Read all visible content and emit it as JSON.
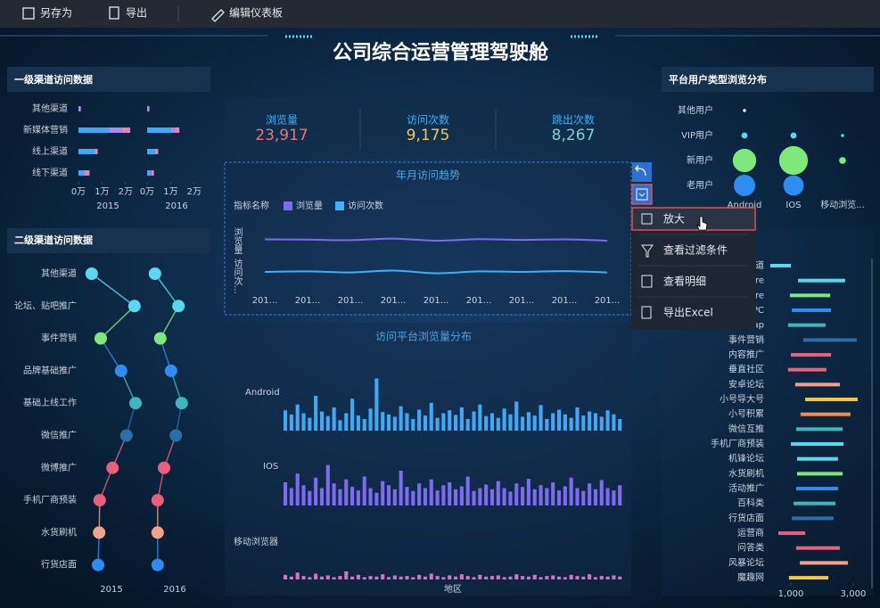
{
  "toolbar": {
    "items": [
      "另存为",
      "导出",
      "编辑仪表板"
    ]
  },
  "dashboard": {
    "title": "公司综合运营管理驾驶舱"
  },
  "kpis": [
    {
      "label": "浏览量",
      "value": "23,917"
    },
    {
      "label": "访问次数",
      "value": "9,175"
    },
    {
      "label": "跳出次数",
      "value": "8,267"
    }
  ],
  "context_menu": {
    "items": [
      "放大",
      "查看过滤条件",
      "查看明细",
      "导出Excel"
    ]
  },
  "chart_data": [
    {
      "type": "stacked-bar",
      "title": "一级渠道访问数据",
      "categories": [
        "其他渠道",
        "新媒体营销",
        "线上渠道",
        "线下渠道"
      ],
      "facets": [
        {
          "label": "2015",
          "series": [
            {
              "color": "#3fa9f5",
              "values": [
                0,
                13000,
                7000,
                2500
              ]
            },
            {
              "color": "#a98cf0",
              "values": [
                1000,
                5500,
                0,
                0
              ]
            },
            {
              "color": "#e77fc6",
              "values": [
                0,
                3500,
                1200,
                2200
              ]
            }
          ]
        },
        {
          "label": "2016",
          "series": [
            {
              "color": "#3fa9f5",
              "values": [
                0,
                10000,
                3600,
                1800
              ]
            },
            {
              "color": "#a98cf0",
              "values": [
                1000,
                1500,
                0,
                0
              ]
            },
            {
              "color": "#e77fc6",
              "values": [
                0,
                2200,
                1100,
                1100
              ]
            }
          ]
        }
      ],
      "xlim": [
        0,
        25000
      ],
      "xticks": [
        {
          "value": 0,
          "label": "0万"
        },
        {
          "value": 10000,
          "label": "1万"
        },
        {
          "value": 20000,
          "label": "2万"
        }
      ]
    },
    {
      "type": "dot-line",
      "title": "二级渠道访问数据",
      "categories": [
        "其他渠道",
        "论坛、贴吧推广",
        "事件营销",
        "品牌基础推广",
        "基础上线工作",
        "微信推广",
        "微博推广",
        "手机厂商预装",
        "水货刷机",
        "行货店面"
      ],
      "colors": [
        "#5ad8f0",
        "#5ad8f0",
        "#7ee87a",
        "#2e8df0",
        "#3fb7c0",
        "#2b6ea8",
        "#e8607a",
        "#e8607a",
        "#f2a28a",
        "#2e8df0"
      ],
      "facets": [
        {
          "label": "2015",
          "values": [
            13,
            93,
            30,
            68,
            95,
            78,
            52,
            28,
            27,
            25
          ]
        },
        {
          "label": "2016",
          "values": [
            13,
            57,
            23,
            43,
            63,
            52,
            30,
            18,
            18,
            18
          ]
        }
      ],
      "xlim": [
        0,
        100
      ]
    },
    {
      "type": "bubble",
      "title": "平台用户类型浏览分布",
      "rows": [
        "其他用户",
        "VIP用户",
        "新用户",
        "老用户"
      ],
      "columns": [
        "Android",
        "IOS",
        "移动浏览..."
      ],
      "colors": [
        "#ffffff",
        "#5ad8f0",
        "#7ee87a",
        "#2e8df0"
      ],
      "values": [
        [
          1,
          0,
          0
        ],
        [
          4,
          4,
          1
        ],
        [
          60,
          90,
          5
        ],
        [
          50,
          45,
          0
        ]
      ]
    },
    {
      "type": "line",
      "title": "年月访问趋势",
      "legend_title": "指标名称",
      "categories": [
        "201...",
        "201...",
        "201...",
        "201...",
        "201...",
        "201...",
        "201...",
        "201...",
        "201..."
      ],
      "series": [
        {
          "name": "浏览量",
          "row_label": "浏览量",
          "color": "#7b6cf0",
          "values": [
            55,
            54,
            52,
            58,
            50,
            56,
            53,
            55,
            50
          ]
        },
        {
          "name": "访问次数",
          "row_label": "访问次...",
          "color": "#3fb0f5",
          "values": [
            50,
            52,
            48,
            55,
            45,
            52,
            50,
            53,
            48
          ]
        }
      ],
      "ylim": [
        0,
        100
      ]
    },
    {
      "type": "bar",
      "title": "访问平台浏览量分布",
      "x_label": "地区",
      "series": [
        {
          "name": "Android",
          "color": "#3fa9f5",
          "values": [
            35,
            28,
            45,
            30,
            22,
            60,
            33,
            25,
            40,
            18,
            30,
            55,
            26,
            20,
            38,
            90,
            32,
            28,
            24,
            42,
            30,
            20,
            36,
            26,
            48,
            22,
            30,
            35,
            27,
            40,
            20,
            33,
            45,
            25,
            30,
            22,
            38,
            28,
            50,
            24,
            32,
            26,
            44,
            20,
            30,
            36,
            28,
            22,
            40,
            26,
            33,
            30,
            24,
            35,
            28,
            20
          ]
        },
        {
          "name": "IOS",
          "color": "#7b6cf0",
          "values": [
            40,
            30,
            55,
            35,
            25,
            48,
            30,
            70,
            38,
            28,
            45,
            32,
            26,
            50,
            30,
            22,
            42,
            35,
            28,
            60,
            32,
            25,
            38,
            30,
            45,
            26,
            35,
            40,
            28,
            33,
            50,
            25,
            30,
            36,
            28,
            42,
            30,
            24,
            38,
            32,
            46,
            28,
            35,
            30,
            40,
            26,
            33,
            48,
            30,
            25,
            38,
            28,
            44,
            30,
            26,
            35
          ]
        },
        {
          "name": "移动浏览器",
          "color": "#d86fc8",
          "values": [
            8,
            5,
            12,
            6,
            4,
            10,
            5,
            7,
            4,
            6,
            14,
            5,
            8,
            4,
            6,
            5,
            9,
            4,
            7,
            5,
            6,
            4,
            8,
            5,
            10,
            6,
            4,
            7,
            5,
            9,
            6,
            4,
            8,
            5,
            6,
            7,
            4,
            5,
            9,
            6,
            5,
            8,
            4,
            6,
            7,
            5,
            4,
            8,
            6,
            5,
            9,
            4,
            6,
            5,
            7,
            5
          ]
        }
      ],
      "ylim": [
        0,
        100
      ]
    },
    {
      "type": "range-bar",
      "categories": [
        "道",
        "re",
        "re",
        "PC",
        "ap",
        "事件营销",
        "内容推广",
        "垂直社区",
        "安卓论坛",
        "小号导大号",
        "小号积累",
        "微信互推",
        "手机厂商预装",
        "机锋论坛",
        "水货刷机",
        "活动推广",
        "百科类",
        "行货店面",
        "运营商",
        "问答类",
        "风暴论坛",
        "魔趣网"
      ],
      "colors": [
        "#5ad8f0",
        "#5ad8f0",
        "#7ee87a",
        "#2e8df0",
        "#3fb7c0",
        "#2b6ea8",
        "#e8607a",
        "#e8607a",
        "#f2a28a",
        "#f5c842",
        "#f2904a",
        "#3fb7c0",
        "#5ad8f0",
        "#5ad8f0",
        "#7ee87a",
        "#2e8df0",
        "#3fb7c0",
        "#2b6ea8",
        "#e8607a",
        "#e8607a",
        "#f2a28a",
        "#f5c842"
      ],
      "starts": [
        340,
        1230,
        970,
        1030,
        910,
        1400,
        1000,
        910,
        1140,
        1460,
        1310,
        1170,
        1000,
        1200,
        1200,
        1170,
        1090,
        1030,
        600,
        1170,
        1290,
        940
      ],
      "values": [
        1000,
        2740,
        2260,
        2290,
        2110,
        3110,
        2290,
        2140,
        2570,
        3140,
        2910,
        2660,
        2690,
        2510,
        2660,
        2510,
        2430,
        2370,
        1460,
        2570,
        2830,
        2200
      ],
      "xlim": [
        300,
        3400
      ],
      "xticks": [
        {
          "value": 1000,
          "label": "1,000"
        },
        {
          "value": 3000,
          "label": "3,000"
        }
      ]
    }
  ]
}
